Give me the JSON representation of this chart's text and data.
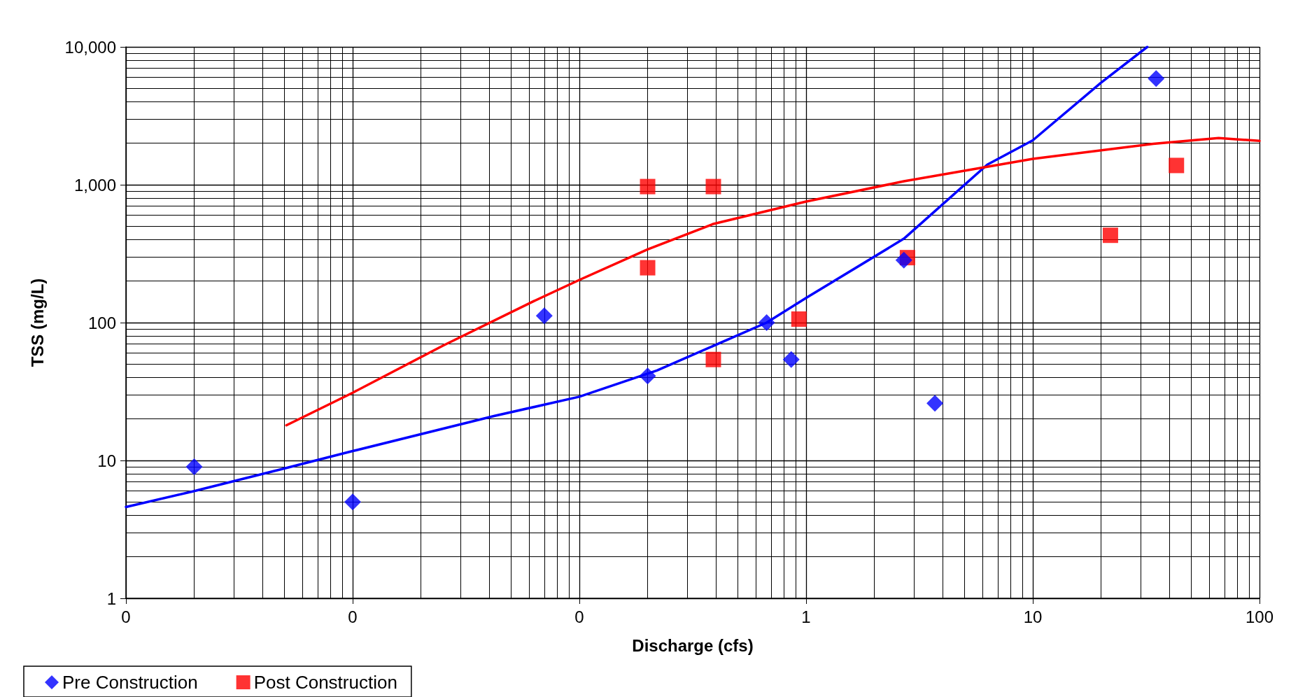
{
  "chart_data": {
    "type": "scatter",
    "xlabel": "Discharge (cfs)",
    "ylabel": "TSS (mg/L)",
    "log": "xy",
    "xlim": [
      0.001,
      100
    ],
    "xticks": [
      {
        "value": 0.001,
        "label": "0"
      },
      {
        "value": 0.01,
        "label": "0"
      },
      {
        "value": 0.1,
        "label": "0"
      },
      1,
      10,
      100
    ],
    "ylim": [
      1,
      10000
    ],
    "yticks": [
      1,
      10,
      100,
      {
        "value": 1000,
        "label": "1,000"
      },
      {
        "value": 10000,
        "label": "10,000"
      }
    ],
    "grid": true,
    "legend": "bottom left",
    "series": [
      {
        "name": "Pre Construction",
        "type": "scatter",
        "marker": "diamond",
        "color": "#0000ff",
        "x": [
          0.002,
          0.01,
          0.07,
          0.2,
          0.67,
          0.86,
          2.7,
          3.7,
          35
        ],
        "values": [
          9,
          5,
          112,
          41,
          100,
          54,
          284,
          26,
          5900
        ]
      },
      {
        "name": "Post Construction",
        "type": "scatter",
        "marker": "square",
        "color": "#ff0000",
        "x": [
          0.2,
          0.39,
          0.2,
          0.39,
          0.93,
          2.8,
          22,
          43
        ],
        "values": [
          970,
          970,
          250,
          54,
          106,
          296,
          430,
          1380
        ]
      },
      {
        "type": "line",
        "marker": "none",
        "color": "#0000ff",
        "x": [
          0.001,
          0.002,
          0.0052,
          0.01,
          0.042,
          0.1,
          0.22,
          0.67,
          1,
          2.7,
          6.3,
          10,
          20,
          32
        ],
        "values": [
          4.6,
          6,
          8.9,
          11.7,
          21,
          29,
          45,
          100,
          151,
          406,
          1400,
          2100,
          5500,
          10000
        ]
      },
      {
        "type": "line",
        "marker": "none",
        "color": "#ff0000",
        "x": [
          0.0051,
          0.01,
          0.025,
          0.064,
          0.1,
          0.2,
          0.39,
          1,
          2.7,
          10,
          34,
          66,
          100
        ],
        "values": [
          18,
          31,
          68,
          145,
          204,
          340,
          520,
          755,
          1060,
          1540,
          1980,
          2180,
          2080
        ]
      }
    ]
  }
}
